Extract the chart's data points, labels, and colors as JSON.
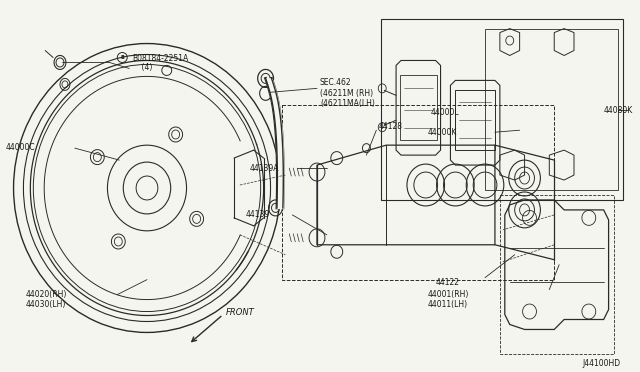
{
  "bg_color": "#f5f5f0",
  "line_color": "#2a2a2a",
  "text_color": "#1a1a1a",
  "diagram_id": "J44100HD",
  "font_size": 6.0,
  "small_font_size": 5.5,
  "labels": {
    "bolt": "B08184-2251A\n   (4)",
    "part_c": "44000C",
    "sec": "SEC.462\n(46211M (RH)\n(46211MA(LH)",
    "part_139a": "44139A",
    "part_128": "44128",
    "part_l": "44000L",
    "part_139": "44139",
    "part_122": "44122",
    "part_020": "44020(RH)\n44030(LH)",
    "part_k": "44000K",
    "part_080k": "44080K",
    "part_001": "44001(RH)\n44011(LH)",
    "front": "FRONT"
  }
}
